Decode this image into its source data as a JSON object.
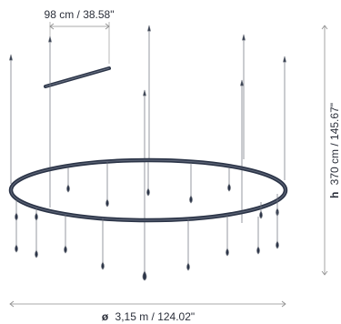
{
  "dimensions": {
    "canopy_width": {
      "label": "98 cm / 38.58\""
    },
    "height": {
      "prefix": "h",
      "label": "370 cm / 145.67\""
    },
    "diameter": {
      "prefix": "ø",
      "label": "3,15 m / 124.02\""
    }
  },
  "colors": {
    "fixture": "#2b3447",
    "dimension_line": "#8c8c8c",
    "text": "#2b2f3a",
    "background": "#ffffff"
  }
}
